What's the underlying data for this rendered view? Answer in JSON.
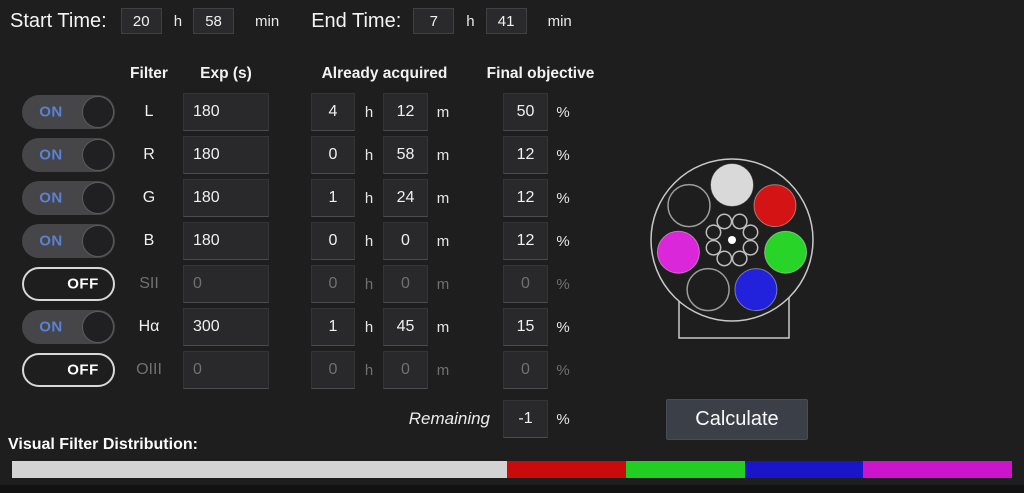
{
  "time_bar": {
    "start_label": "Start Time:",
    "start_hour": "20",
    "start_min": "58",
    "end_label": "End Time:",
    "end_hour": "7",
    "end_min": "41",
    "h_unit": "h",
    "min_unit": "min"
  },
  "table": {
    "headers": {
      "filter": "Filter",
      "exp": "Exp (s)",
      "acquired": "Already acquired",
      "objective": "Final objective"
    },
    "units": {
      "h": "h",
      "m": "m",
      "percent": "%"
    },
    "rows": [
      {
        "name": "L",
        "enabled": true,
        "toggle": "ON",
        "exp": "180",
        "acq_h": "4",
        "acq_m": "12",
        "obj": "50"
      },
      {
        "name": "R",
        "enabled": true,
        "toggle": "ON",
        "exp": "180",
        "acq_h": "0",
        "acq_m": "58",
        "obj": "12"
      },
      {
        "name": "G",
        "enabled": true,
        "toggle": "ON",
        "exp": "180",
        "acq_h": "1",
        "acq_m": "24",
        "obj": "12"
      },
      {
        "name": "B",
        "enabled": true,
        "toggle": "ON",
        "exp": "180",
        "acq_h": "0",
        "acq_m": "0",
        "obj": "12"
      },
      {
        "name": "SII",
        "enabled": false,
        "toggle": "OFF",
        "exp": "0",
        "acq_h": "0",
        "acq_m": "0",
        "obj": "0"
      },
      {
        "name": "Hα",
        "enabled": true,
        "toggle": "ON",
        "exp": "300",
        "acq_h": "1",
        "acq_m": "45",
        "obj": "15"
      },
      {
        "name": "OIII",
        "enabled": false,
        "toggle": "OFF",
        "exp": "0",
        "acq_h": "0",
        "acq_m": "0",
        "obj": "0"
      }
    ]
  },
  "remaining": {
    "label": "Remaining",
    "value": "-1",
    "unit": "%"
  },
  "calculate_label": "Calculate",
  "distribution": {
    "label": "Visual Filter Distribution:",
    "segments": [
      {
        "name": "L",
        "value": 50,
        "color": "#d3d3d3"
      },
      {
        "name": "R",
        "value": 12,
        "color": "#c90b0b"
      },
      {
        "name": "G",
        "value": 12,
        "color": "#23ce23"
      },
      {
        "name": "B",
        "value": 12,
        "color": "#1b15c9"
      },
      {
        "name": "Hα",
        "value": 15,
        "color": "#cc14cc"
      }
    ]
  },
  "wheel": {
    "slots": [
      {
        "name": "L",
        "color": "#d9d9d9"
      },
      {
        "name": "R",
        "color": "#d41414"
      },
      {
        "name": "G",
        "color": "#28d428"
      },
      {
        "name": "B",
        "color": "#2222dd"
      },
      {
        "name": "empty",
        "color": null
      },
      {
        "name": "Hα",
        "color": "#d927d9"
      },
      {
        "name": "empty",
        "color": null
      }
    ]
  },
  "colors": {
    "toggle_on_accent": "#5b80d6",
    "background": "#1e1e1f"
  }
}
